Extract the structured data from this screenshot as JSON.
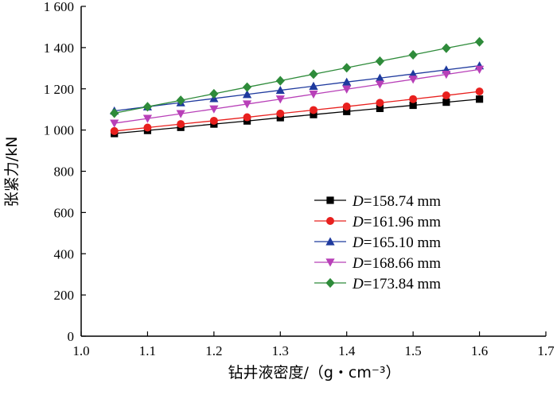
{
  "chart_data": {
    "type": "line",
    "title": "",
    "xlabel": "钻井液密度/（g・cm⁻³）",
    "ylabel": "张紧力/kN",
    "xlim": [
      1.0,
      1.7
    ],
    "ylim": [
      0,
      1600
    ],
    "xticks": [
      "1.0",
      "1.1",
      "1.2",
      "1.3",
      "1.4",
      "1.5",
      "1.6",
      "1.7"
    ],
    "yticks": [
      "0",
      "200",
      "400",
      "600",
      "800",
      "1 000",
      "1 200",
      "1 400",
      "1 600"
    ],
    "grid": false,
    "legend_position": "bottom-right",
    "x": [
      1.05,
      1.1,
      1.15,
      1.2,
      1.25,
      1.3,
      1.35,
      1.4,
      1.45,
      1.5,
      1.55,
      1.6
    ],
    "series": [
      {
        "name": "D=158.74 mm",
        "var": "D",
        "label_rest": "=158.74 mm",
        "color": "#000000",
        "marker": "square",
        "values": [
          983,
          998,
          1013,
          1029,
          1044,
          1060,
          1075,
          1090,
          1105,
          1120,
          1135,
          1150
        ]
      },
      {
        "name": "D=161.96 mm",
        "var": "D",
        "label_rest": "=161.96 mm",
        "color": "#e8201e",
        "marker": "circle",
        "values": [
          995,
          1012,
          1029,
          1045,
          1062,
          1080,
          1097,
          1114,
          1132,
          1150,
          1168,
          1187
        ]
      },
      {
        "name": "D=165.10 mm",
        "var": "D",
        "label_rest": "=165.10 mm",
        "color": "#1f3a9e",
        "marker": "triangle-up",
        "values": [
          1093,
          1113,
          1133,
          1153,
          1173,
          1193,
          1213,
          1233,
          1252,
          1272,
          1292,
          1312
        ]
      },
      {
        "name": "D=168.66 mm",
        "var": "D",
        "label_rest": "=168.66 mm",
        "color": "#b840b8",
        "marker": "triangle-down",
        "values": [
          1033,
          1056,
          1079,
          1102,
          1126,
          1150,
          1174,
          1198,
          1222,
          1246,
          1270,
          1294
        ]
      },
      {
        "name": "D=173.84 mm",
        "var": "D",
        "label_rest": "=173.84 mm",
        "color": "#2e8b3a",
        "marker": "diamond",
        "values": [
          1082,
          1113,
          1144,
          1176,
          1208,
          1239,
          1271,
          1302,
          1334,
          1365,
          1397,
          1428
        ]
      }
    ]
  }
}
